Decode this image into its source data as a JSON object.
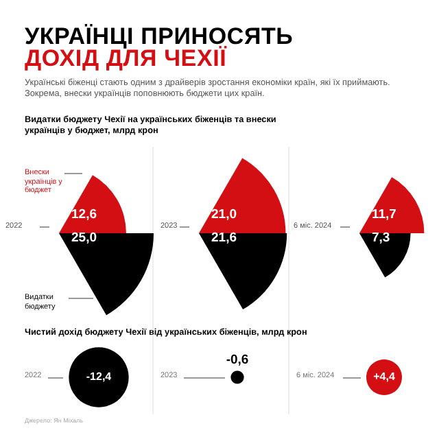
{
  "chart_data": [
    {
      "type": "other",
      "title": "УКРАЇНЦІ ПРИНОСЯТЬ\nДОХІД ДЛЯ ЧЕХІЇ",
      "subtitle": "Українські біженці стають одним з драйверів зростання економіки країн, які їх приймають. Зокрема, внески  українців поповнюють бюджети цих країн."
    },
    {
      "type": "other",
      "title": "Видатки бюджету Чехії на українських біженців та внески українців у бюджет, млрд крон",
      "categories": [
        "2022",
        "2023",
        "6 міс. 2024"
      ],
      "series": [
        {
          "name": "Внески українців у бюджет",
          "color": "#d40f14",
          "values": [
            12.6,
            21.0,
            11.7
          ],
          "value_labels": [
            "12,6",
            "21,0",
            "11,7"
          ]
        },
        {
          "name": "Видатки бюджету",
          "color": "#000000",
          "values": [
            25.0,
            21.6,
            7.3
          ],
          "value_labels": [
            "25,0",
            "21,6",
            "7,3"
          ]
        }
      ]
    },
    {
      "type": "other",
      "title": "Чистий дохід бюджету Чехії від українських біженців, млрд крон",
      "categories": [
        "2022",
        "2023",
        "6 міс. 2024"
      ],
      "values": [
        -12.4,
        -0.6,
        4.4
      ],
      "value_labels": [
        "-12,4",
        "-0,6",
        "+4,4"
      ],
      "colors": [
        "#000000",
        "#000000",
        "#d40f14"
      ],
      "annotations": [
        "Джерело: Ян Міхаль"
      ]
    }
  ]
}
